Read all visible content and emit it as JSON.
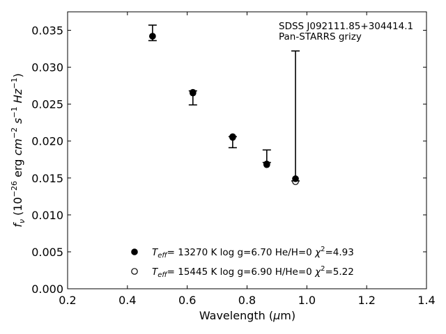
{
  "chart_data": {
    "type": "scatter",
    "title": "",
    "xlabel": "Wavelength (μm)",
    "ylabel": "f_ν (10^-26 erg cm^-2 s^-1 Hz^-1)",
    "xlim": [
      0.2,
      1.4
    ],
    "ylim": [
      0.0,
      0.0375
    ],
    "xticks": [
      "0.2",
      "0.4",
      "0.6",
      "0.8",
      "1.0",
      "1.2",
      "1.4"
    ],
    "xtick_values": [
      0.2,
      0.4,
      0.6,
      0.8,
      1.0,
      1.2,
      1.4
    ],
    "yticks": [
      "0.000",
      "0.005",
      "0.010",
      "0.015",
      "0.020",
      "0.025",
      "0.030",
      "0.035"
    ],
    "ytick_values": [
      0.0,
      0.005,
      0.01,
      0.015,
      0.02,
      0.025,
      0.03,
      0.035
    ],
    "grid": false,
    "annotation": {
      "line1": "SDSS J092111.85+304414.1",
      "line2": "Pan-STARRS grizy"
    },
    "observed": [
      {
        "x": 0.484,
        "y": 0.0346,
        "ylow": 0.0336,
        "yhigh": 0.0357
      },
      {
        "x": 0.619,
        "y": 0.0267,
        "ylow": 0.0249,
        "yhigh": 0.0268
      },
      {
        "x": 0.752,
        "y": 0.0206,
        "ylow": 0.0191,
        "yhigh": 0.0206
      },
      {
        "x": 0.866,
        "y": 0.0176,
        "ylow": 0.0171,
        "yhigh": 0.0188
      },
      {
        "x": 0.962,
        "y": 0.015,
        "ylow": 0.0146,
        "yhigh": 0.0322
      }
    ],
    "series": [
      {
        "name": "He/H=0",
        "marker": "filled",
        "legend": {
          "teff": "13270",
          "logg": "6.70",
          "comp": "He/H=0",
          "chi2": "4.93"
        },
        "x": [
          0.484,
          0.619,
          0.752,
          0.866,
          0.962
        ],
        "y": [
          0.0342,
          0.0265,
          0.0206,
          0.0169,
          0.0149
        ]
      },
      {
        "name": "H/He=0",
        "marker": "open",
        "legend": {
          "teff": "15445",
          "logg": "6.90",
          "comp": "H/He=0",
          "chi2": "5.22"
        },
        "x": [
          0.484,
          0.619,
          0.752,
          0.866,
          0.962
        ],
        "y": [
          0.0342,
          0.0266,
          0.0205,
          0.0168,
          0.0145
        ]
      }
    ],
    "legend_position": "lower-center"
  }
}
